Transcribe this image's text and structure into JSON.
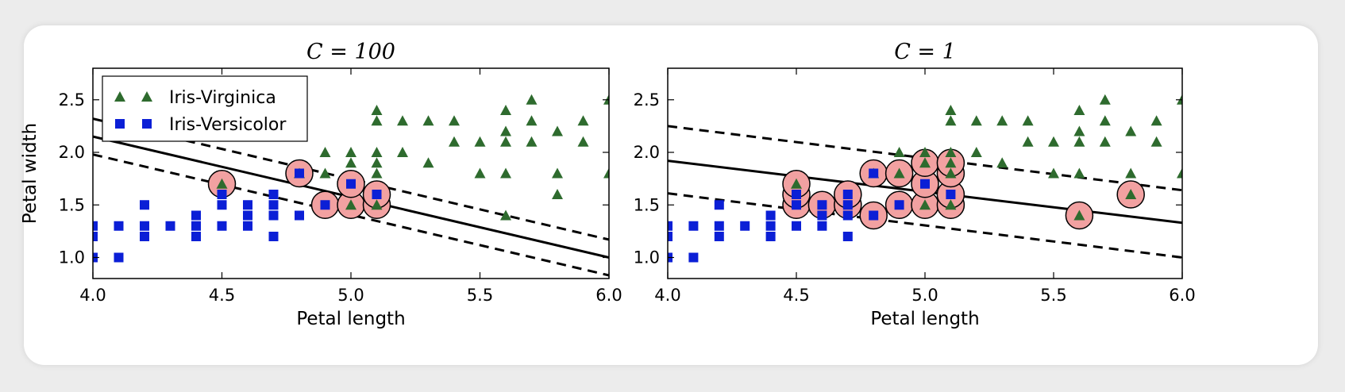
{
  "chart_data": [
    {
      "type": "scatter",
      "title": "C = 100",
      "xlabel": "Petal length",
      "ylabel": "Petal width",
      "xlim": [
        4.0,
        6.0
      ],
      "ylim": [
        0.8,
        2.8
      ],
      "xticks": [
        "4.0",
        "4.5",
        "5.0",
        "5.5",
        "6.0"
      ],
      "yticks": [
        "1.0",
        "1.5",
        "2.0",
        "2.5"
      ],
      "grid": false,
      "legend": "top-left",
      "series": [
        {
          "name": "Iris-Virginica",
          "marker": "triangle",
          "color": "#2e6b2e",
          "points": [
            [
              4.5,
              1.7
            ],
            [
              4.8,
              1.8
            ],
            [
              4.9,
              1.8
            ],
            [
              4.9,
              2.0
            ],
            [
              5.0,
              1.5
            ],
            [
              5.0,
              1.9
            ],
            [
              5.0,
              2.0
            ],
            [
              5.1,
              1.5
            ],
            [
              5.1,
              1.8
            ],
            [
              5.1,
              1.9
            ],
            [
              5.1,
              2.0
            ],
            [
              5.1,
              2.3
            ],
            [
              5.1,
              2.4
            ],
            [
              5.2,
              2.0
            ],
            [
              5.2,
              2.3
            ],
            [
              5.3,
              1.9
            ],
            [
              5.3,
              2.3
            ],
            [
              5.4,
              2.1
            ],
            [
              5.4,
              2.3
            ],
            [
              5.5,
              1.8
            ],
            [
              5.5,
              2.1
            ],
            [
              5.6,
              1.4
            ],
            [
              5.6,
              1.8
            ],
            [
              5.6,
              2.1
            ],
            [
              5.6,
              2.2
            ],
            [
              5.6,
              2.4
            ],
            [
              5.7,
              2.1
            ],
            [
              5.7,
              2.3
            ],
            [
              5.7,
              2.5
            ],
            [
              5.8,
              1.6
            ],
            [
              5.8,
              1.8
            ],
            [
              5.8,
              2.2
            ],
            [
              5.9,
              2.1
            ],
            [
              5.9,
              2.3
            ],
            [
              6.0,
              1.8
            ],
            [
              6.0,
              2.5
            ]
          ]
        },
        {
          "name": "Iris-Versicolor",
          "marker": "square",
          "color": "#0b1fd6",
          "points": [
            [
              4.0,
              1.0
            ],
            [
              4.0,
              1.2
            ],
            [
              4.0,
              1.3
            ],
            [
              4.1,
              1.0
            ],
            [
              4.1,
              1.3
            ],
            [
              4.2,
              1.2
            ],
            [
              4.2,
              1.3
            ],
            [
              4.2,
              1.5
            ],
            [
              4.3,
              1.3
            ],
            [
              4.4,
              1.2
            ],
            [
              4.4,
              1.3
            ],
            [
              4.4,
              1.4
            ],
            [
              4.5,
              1.3
            ],
            [
              4.5,
              1.5
            ],
            [
              4.5,
              1.6
            ],
            [
              4.6,
              1.3
            ],
            [
              4.6,
              1.4
            ],
            [
              4.6,
              1.5
            ],
            [
              4.7,
              1.2
            ],
            [
              4.7,
              1.4
            ],
            [
              4.7,
              1.5
            ],
            [
              4.7,
              1.6
            ],
            [
              4.8,
              1.4
            ],
            [
              4.8,
              1.8
            ],
            [
              4.9,
              1.5
            ],
            [
              5.0,
              1.7
            ],
            [
              5.1,
              1.6
            ]
          ]
        }
      ],
      "support_vectors": [
        [
          4.5,
          1.7
        ],
        [
          4.8,
          1.8
        ],
        [
          4.9,
          1.5
        ],
        [
          5.0,
          1.5
        ],
        [
          5.0,
          1.7
        ],
        [
          5.1,
          1.5
        ],
        [
          5.1,
          1.6
        ]
      ],
      "decision_boundary": [
        [
          4.0,
          2.15
        ],
        [
          6.0,
          1.0
        ]
      ],
      "margin_upper": [
        [
          4.0,
          2.32
        ],
        [
          6.0,
          1.17
        ]
      ],
      "margin_lower": [
        [
          4.0,
          1.98
        ],
        [
          6.0,
          0.83
        ]
      ]
    },
    {
      "type": "scatter",
      "title": "C = 1",
      "xlabel": "Petal length",
      "ylabel": "",
      "xlim": [
        4.0,
        6.0
      ],
      "ylim": [
        0.8,
        2.8
      ],
      "xticks": [
        "4.0",
        "4.5",
        "5.0",
        "5.5",
        "6.0"
      ],
      "yticks": [
        "1.0",
        "1.5",
        "2.0",
        "2.5"
      ],
      "grid": false,
      "series": [
        {
          "name": "Iris-Virginica",
          "marker": "triangle",
          "color": "#2e6b2e",
          "points": [
            [
              4.5,
              1.7
            ],
            [
              4.8,
              1.8
            ],
            [
              4.9,
              1.8
            ],
            [
              4.9,
              2.0
            ],
            [
              5.0,
              1.5
            ],
            [
              5.0,
              1.9
            ],
            [
              5.0,
              2.0
            ],
            [
              5.1,
              1.5
            ],
            [
              5.1,
              1.8
            ],
            [
              5.1,
              1.9
            ],
            [
              5.1,
              2.0
            ],
            [
              5.1,
              2.3
            ],
            [
              5.1,
              2.4
            ],
            [
              5.2,
              2.0
            ],
            [
              5.2,
              2.3
            ],
            [
              5.3,
              1.9
            ],
            [
              5.3,
              2.3
            ],
            [
              5.4,
              2.1
            ],
            [
              5.4,
              2.3
            ],
            [
              5.5,
              1.8
            ],
            [
              5.5,
              2.1
            ],
            [
              5.6,
              1.4
            ],
            [
              5.6,
              1.8
            ],
            [
              5.6,
              2.1
            ],
            [
              5.6,
              2.2
            ],
            [
              5.6,
              2.4
            ],
            [
              5.7,
              2.1
            ],
            [
              5.7,
              2.3
            ],
            [
              5.7,
              2.5
            ],
            [
              5.8,
              1.6
            ],
            [
              5.8,
              1.8
            ],
            [
              5.8,
              2.2
            ],
            [
              5.9,
              2.1
            ],
            [
              5.9,
              2.3
            ],
            [
              6.0,
              1.8
            ],
            [
              6.0,
              2.5
            ]
          ]
        },
        {
          "name": "Iris-Versicolor",
          "marker": "square",
          "color": "#0b1fd6",
          "points": [
            [
              4.0,
              1.0
            ],
            [
              4.0,
              1.2
            ],
            [
              4.0,
              1.3
            ],
            [
              4.1,
              1.0
            ],
            [
              4.1,
              1.3
            ],
            [
              4.2,
              1.2
            ],
            [
              4.2,
              1.3
            ],
            [
              4.2,
              1.5
            ],
            [
              4.3,
              1.3
            ],
            [
              4.4,
              1.2
            ],
            [
              4.4,
              1.3
            ],
            [
              4.4,
              1.4
            ],
            [
              4.5,
              1.3
            ],
            [
              4.5,
              1.5
            ],
            [
              4.5,
              1.6
            ],
            [
              4.6,
              1.3
            ],
            [
              4.6,
              1.4
            ],
            [
              4.6,
              1.5
            ],
            [
              4.7,
              1.2
            ],
            [
              4.7,
              1.4
            ],
            [
              4.7,
              1.5
            ],
            [
              4.7,
              1.6
            ],
            [
              4.8,
              1.4
            ],
            [
              4.8,
              1.8
            ],
            [
              4.9,
              1.5
            ],
            [
              5.0,
              1.7
            ],
            [
              5.1,
              1.6
            ]
          ]
        }
      ],
      "support_vectors": [
        [
          4.5,
          1.5
        ],
        [
          4.5,
          1.6
        ],
        [
          4.5,
          1.7
        ],
        [
          4.6,
          1.5
        ],
        [
          4.7,
          1.5
        ],
        [
          4.7,
          1.6
        ],
        [
          4.8,
          1.4
        ],
        [
          4.8,
          1.8
        ],
        [
          4.9,
          1.5
        ],
        [
          4.9,
          1.8
        ],
        [
          5.0,
          1.5
        ],
        [
          5.0,
          1.7
        ],
        [
          5.0,
          1.9
        ],
        [
          5.1,
          1.5
        ],
        [
          5.1,
          1.6
        ],
        [
          5.1,
          1.8
        ],
        [
          5.1,
          1.9
        ],
        [
          5.6,
          1.4
        ],
        [
          5.8,
          1.6
        ]
      ],
      "decision_boundary": [
        [
          4.0,
          1.92
        ],
        [
          6.0,
          1.33
        ]
      ],
      "margin_upper": [
        [
          4.0,
          2.25
        ],
        [
          6.0,
          1.64
        ]
      ],
      "margin_lower": [
        [
          4.0,
          1.61
        ],
        [
          6.0,
          1.0
        ]
      ]
    }
  ],
  "colors": {
    "virginica": "#2e6b2e",
    "versicolor": "#0b1fd6",
    "support_vector_fill": "#f2a1a1"
  }
}
